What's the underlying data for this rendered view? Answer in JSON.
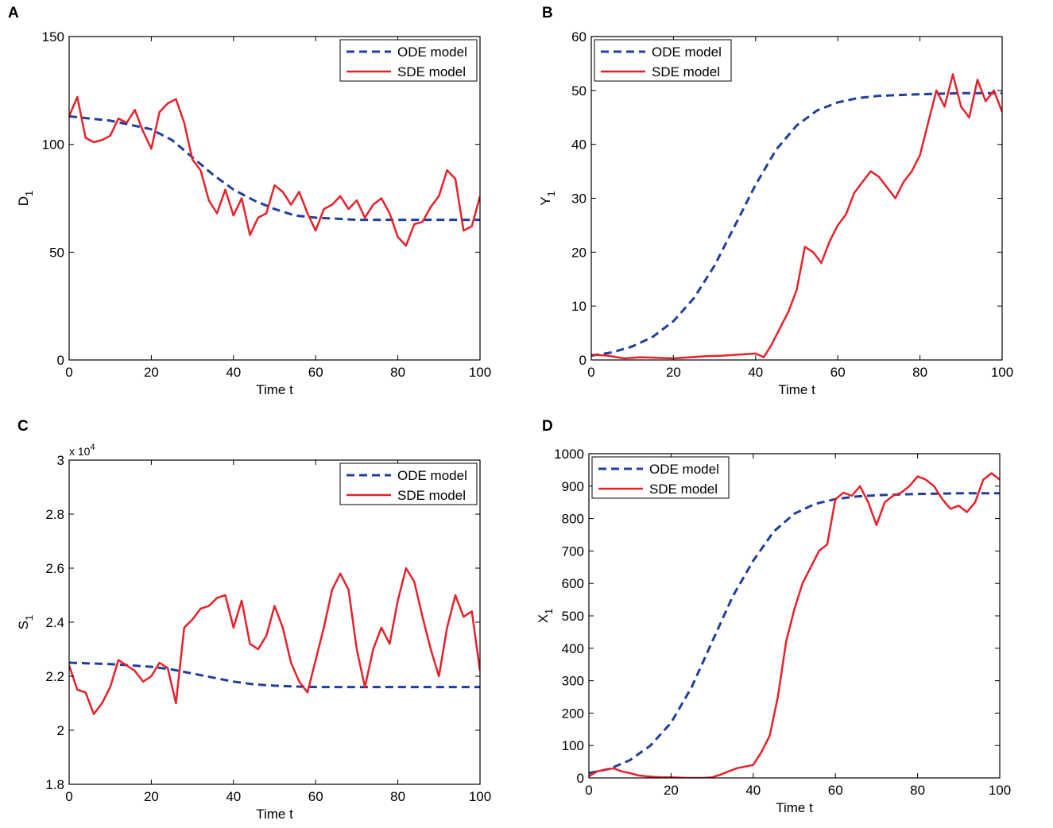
{
  "figure": {
    "colors": {
      "ode": "#1f3f9a",
      "sde": "#e8202a",
      "axis": "#000000"
    }
  },
  "chart_data": [
    {
      "panel": "A",
      "type": "line",
      "xlabel": "Time  t",
      "ylabel": "D",
      "ylabel_sub": "1",
      "xlim": [
        0,
        100
      ],
      "ylim": [
        0,
        150
      ],
      "xticks": [
        0,
        20,
        40,
        60,
        80,
        100
      ],
      "yticks": [
        0,
        50,
        100,
        150
      ],
      "ytick_labels": [
        "0",
        "50",
        "100",
        "150"
      ],
      "exponent_label": "",
      "legend": {
        "position": "top-right",
        "entries": [
          "ODE model",
          "SDE model"
        ]
      },
      "series": [
        {
          "name": "ODE model",
          "style": "dashed",
          "x": [
            0,
            10,
            20,
            25,
            30,
            35,
            40,
            45,
            50,
            55,
            60,
            70,
            80,
            90,
            100
          ],
          "y": [
            113,
            111,
            107,
            102,
            94,
            86,
            79,
            74,
            70,
            67,
            66,
            65,
            65,
            65,
            65
          ]
        },
        {
          "name": "SDE model",
          "style": "solid",
          "x": [
            0,
            2,
            4,
            6,
            8,
            10,
            12,
            14,
            16,
            18,
            20,
            22,
            24,
            26,
            28,
            30,
            32,
            34,
            36,
            38,
            40,
            42,
            44,
            46,
            48,
            50,
            52,
            54,
            56,
            58,
            60,
            62,
            64,
            66,
            68,
            70,
            72,
            74,
            76,
            78,
            80,
            82,
            84,
            86,
            88,
            90,
            92,
            94,
            96,
            98,
            100
          ],
          "y": [
            113,
            122,
            103,
            101,
            102,
            104,
            112,
            110,
            116,
            106,
            98,
            115,
            119,
            121,
            110,
            93,
            88,
            74,
            68,
            79,
            67,
            75,
            58,
            66,
            68,
            81,
            78,
            72,
            78,
            68,
            60,
            70,
            72,
            76,
            70,
            74,
            66,
            72,
            75,
            68,
            57,
            53,
            63,
            64,
            71,
            76,
            88,
            84,
            60,
            62,
            76
          ]
        }
      ]
    },
    {
      "panel": "B",
      "type": "line",
      "xlabel": "Time  t",
      "ylabel": "Y",
      "ylabel_sub": "1",
      "xlim": [
        0,
        100
      ],
      "ylim": [
        0,
        60
      ],
      "xticks": [
        0,
        20,
        40,
        60,
        80,
        100
      ],
      "yticks": [
        0,
        10,
        20,
        30,
        40,
        50,
        60
      ],
      "ytick_labels": [
        "0",
        "10",
        "20",
        "30",
        "40",
        "50",
        "60"
      ],
      "exponent_label": "",
      "legend": {
        "position": "top-left",
        "entries": [
          "ODE model",
          "SDE model"
        ]
      },
      "series": [
        {
          "name": "ODE model",
          "style": "dashed",
          "x": [
            0,
            5,
            10,
            15,
            20,
            25,
            30,
            35,
            40,
            45,
            50,
            55,
            60,
            65,
            70,
            80,
            90,
            100
          ],
          "y": [
            0.8,
            1.4,
            2.5,
            4.3,
            7.2,
            11.5,
            17.5,
            25,
            32.5,
            39,
            43.5,
            46.3,
            47.8,
            48.6,
            49.0,
            49.3,
            49.5,
            49.5
          ]
        },
        {
          "name": "SDE model",
          "style": "solid",
          "x": [
            0,
            4,
            8,
            12,
            16,
            20,
            24,
            28,
            32,
            36,
            40,
            42,
            44,
            46,
            48,
            50,
            52,
            54,
            56,
            58,
            60,
            62,
            64,
            66,
            68,
            70,
            72,
            74,
            76,
            78,
            80,
            82,
            84,
            86,
            88,
            90,
            92,
            94,
            96,
            98,
            100
          ],
          "y": [
            1,
            0.8,
            0.3,
            0.5,
            0.4,
            0.3,
            0.5,
            0.7,
            0.8,
            1.0,
            1.2,
            0.5,
            3,
            6,
            9,
            13,
            21,
            20,
            18,
            22,
            25,
            27,
            31,
            33,
            35,
            34,
            32,
            30,
            33,
            35,
            38,
            44,
            50,
            47,
            53,
            47,
            45,
            52,
            48,
            50,
            46
          ]
        }
      ]
    },
    {
      "panel": "C",
      "type": "line",
      "xlabel": "Time  t",
      "ylabel": "S",
      "ylabel_sub": "1",
      "xlim": [
        0,
        100
      ],
      "ylim": [
        1.8,
        3.0
      ],
      "xticks": [
        0,
        20,
        40,
        60,
        80,
        100
      ],
      "yticks": [
        1.8,
        2.0,
        2.2,
        2.4,
        2.6,
        2.8,
        3.0
      ],
      "ytick_labels": [
        "1.8",
        "2",
        "2.2",
        "2.4",
        "2.6",
        "2.8",
        "3"
      ],
      "exponent_label": "x 10",
      "exponent_power": "4",
      "legend": {
        "position": "top-right",
        "entries": [
          "ODE model",
          "SDE model"
        ]
      },
      "series": [
        {
          "name": "ODE model",
          "style": "dashed",
          "x": [
            0,
            10,
            20,
            25,
            30,
            35,
            40,
            45,
            50,
            55,
            60,
            70,
            80,
            90,
            100
          ],
          "y": [
            2.25,
            2.245,
            2.235,
            2.225,
            2.21,
            2.195,
            2.18,
            2.17,
            2.165,
            2.162,
            2.16,
            2.16,
            2.16,
            2.16,
            2.16
          ]
        },
        {
          "name": "SDE model",
          "style": "solid",
          "x": [
            0,
            2,
            4,
            6,
            8,
            10,
            12,
            14,
            16,
            18,
            20,
            22,
            24,
            26,
            28,
            30,
            32,
            34,
            36,
            38,
            40,
            42,
            44,
            46,
            48,
            50,
            52,
            54,
            56,
            58,
            60,
            62,
            64,
            66,
            68,
            70,
            72,
            74,
            76,
            78,
            80,
            82,
            84,
            86,
            88,
            90,
            92,
            94,
            96,
            98,
            100
          ],
          "y": [
            2.24,
            2.15,
            2.14,
            2.06,
            2.1,
            2.16,
            2.26,
            2.24,
            2.22,
            2.18,
            2.2,
            2.25,
            2.23,
            2.1,
            2.38,
            2.41,
            2.45,
            2.46,
            2.49,
            2.5,
            2.38,
            2.48,
            2.32,
            2.3,
            2.35,
            2.46,
            2.38,
            2.25,
            2.18,
            2.14,
            2.26,
            2.38,
            2.52,
            2.58,
            2.52,
            2.3,
            2.16,
            2.3,
            2.38,
            2.32,
            2.48,
            2.6,
            2.55,
            2.42,
            2.3,
            2.2,
            2.38,
            2.5,
            2.42,
            2.44,
            2.22
          ]
        }
      ]
    },
    {
      "panel": "D",
      "type": "line",
      "xlabel": "Time  t",
      "ylabel": "X",
      "ylabel_sub": "1",
      "xlim": [
        0,
        100
      ],
      "ylim": [
        0,
        1000
      ],
      "xticks": [
        0,
        20,
        40,
        60,
        80,
        100
      ],
      "yticks": [
        0,
        100,
        200,
        300,
        400,
        500,
        600,
        700,
        800,
        900,
        1000
      ],
      "ytick_labels": [
        "0",
        "100",
        "200",
        "300",
        "400",
        "500",
        "600",
        "700",
        "800",
        "900",
        "1000"
      ],
      "exponent_label": "",
      "legend": {
        "position": "top-left",
        "entries": [
          "ODE model",
          "SDE model"
        ]
      },
      "series": [
        {
          "name": "ODE model",
          "style": "dashed",
          "x": [
            0,
            5,
            10,
            15,
            20,
            25,
            30,
            35,
            40,
            45,
            50,
            55,
            60,
            65,
            70,
            80,
            90,
            100
          ],
          "y": [
            15,
            28,
            55,
            100,
            170,
            280,
            420,
            560,
            670,
            760,
            815,
            845,
            860,
            868,
            872,
            876,
            878,
            878
          ]
        },
        {
          "name": "SDE model",
          "style": "solid",
          "x": [
            0,
            2,
            4,
            6,
            8,
            10,
            12,
            14,
            16,
            18,
            20,
            22,
            24,
            26,
            28,
            30,
            32,
            34,
            36,
            38,
            40,
            42,
            44,
            46,
            48,
            50,
            52,
            54,
            56,
            58,
            60,
            62,
            64,
            66,
            68,
            70,
            72,
            74,
            76,
            78,
            80,
            82,
            84,
            86,
            88,
            90,
            92,
            94,
            96,
            98,
            100
          ],
          "y": [
            5,
            20,
            25,
            30,
            20,
            15,
            8,
            5,
            3,
            2,
            2,
            1,
            0,
            0,
            0,
            2,
            10,
            20,
            30,
            35,
            40,
            80,
            130,
            250,
            420,
            520,
            600,
            650,
            700,
            720,
            860,
            880,
            870,
            900,
            850,
            780,
            850,
            870,
            880,
            900,
            930,
            920,
            900,
            860,
            830,
            840,
            820,
            850,
            920,
            940,
            920
          ]
        }
      ]
    }
  ]
}
